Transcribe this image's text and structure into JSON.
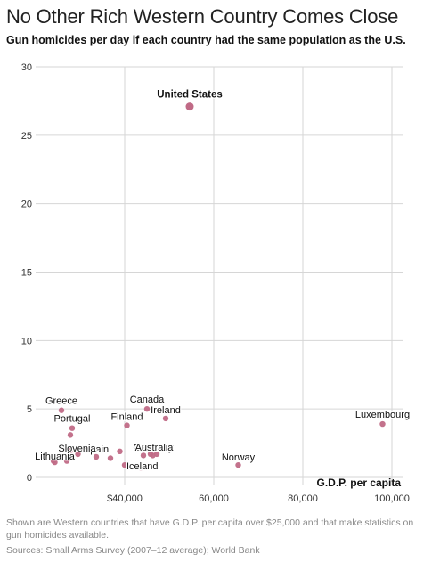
{
  "title": "No Other Rich Western Country Comes Close",
  "subtitle": "Gun homicides per day if each country had the same population as the U.S.",
  "footnote": "Shown are Western countries that have G.D.P. per capita over $25,000 and that make statistics on gun homicides available.",
  "sources": "Sources:  Small Arms Survey (2007–12 average); World Bank",
  "colors": {
    "point": "#c06a86",
    "point_dark": "#a84a6a",
    "grid": "#d6d6d6",
    "axis": "#333333"
  },
  "chart_data": {
    "type": "scatter",
    "xlabel": "G.D.P. per capita",
    "ylabel": "",
    "xlim": [
      20000,
      100000
    ],
    "ylim": [
      0,
      30
    ],
    "x_ticks": [
      {
        "value": 40000,
        "label": "$40,000"
      },
      {
        "value": 60000,
        "label": "60,000"
      },
      {
        "value": 80000,
        "label": "80,000"
      },
      {
        "value": 100000,
        "label": "100,000"
      }
    ],
    "y_ticks": [
      {
        "value": 0,
        "label": "0"
      },
      {
        "value": 5,
        "label": "5"
      },
      {
        "value": 10,
        "label": "10"
      },
      {
        "value": 15,
        "label": "15"
      },
      {
        "value": 20,
        "label": "20"
      },
      {
        "value": 25,
        "label": "25"
      },
      {
        "value": 30,
        "label": "30"
      }
    ],
    "grid": true,
    "points": [
      {
        "x": 54600,
        "y": 27.1,
        "label": "United States",
        "highlight": true
      },
      {
        "x": 97900,
        "y": 3.9,
        "label": "Luxembourg"
      },
      {
        "x": 65500,
        "y": 0.9,
        "label": "Norway"
      },
      {
        "x": 45000,
        "y": 5.0,
        "label": "Canada"
      },
      {
        "x": 49200,
        "y": 4.3,
        "label": "Ireland"
      },
      {
        "x": 40500,
        "y": 3.8,
        "label": "Finland"
      },
      {
        "x": 25800,
        "y": 4.9,
        "label": "Greece"
      },
      {
        "x": 28200,
        "y": 3.6,
        "label": "Portugal"
      },
      {
        "x": 27800,
        "y": 3.1
      },
      {
        "x": 28000,
        "y": 2.0
      },
      {
        "x": 38900,
        "y": 1.9
      },
      {
        "x": 45800,
        "y": 1.7,
        "label": "Germany"
      },
      {
        "x": 46300,
        "y": 1.6
      },
      {
        "x": 47200,
        "y": 1.7,
        "label": "Australia"
      },
      {
        "x": 44200,
        "y": 1.6
      },
      {
        "x": 33600,
        "y": 1.5,
        "label": "Spain"
      },
      {
        "x": 36800,
        "y": 1.4
      },
      {
        "x": 29500,
        "y": 1.7,
        "label": "Slovenia"
      },
      {
        "x": 27000,
        "y": 1.2
      },
      {
        "x": 24000,
        "y": 1.2
      },
      {
        "x": 24300,
        "y": 1.1,
        "label": "Lithuania"
      },
      {
        "x": 40000,
        "y": 0.9,
        "label": "Iceland"
      },
      {
        "x": 43600,
        "y": 0.7
      }
    ]
  }
}
